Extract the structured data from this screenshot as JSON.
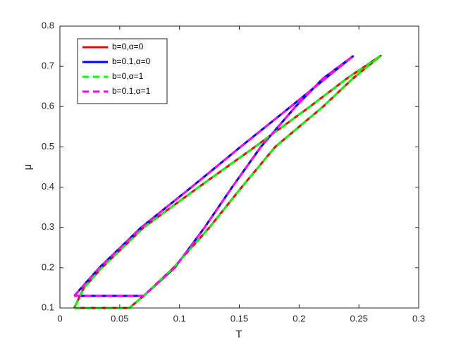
{
  "chart_data": {
    "type": "line",
    "xlabel": "T",
    "ylabel": "μ",
    "xlim": [
      0,
      0.3
    ],
    "xticks": [
      0,
      0.05,
      0.1,
      0.15,
      0.2,
      0.25,
      0.3
    ],
    "ylim": [
      0.1,
      0.8
    ],
    "yticks": [
      0.1,
      0.2,
      0.3,
      0.4,
      0.5,
      0.6,
      0.7,
      0.8
    ],
    "legend": "upper-left",
    "series": [
      {
        "name": "b=0,α=0",
        "color": "#ff0000",
        "style": "solid",
        "x": [
          0.012,
          0.058,
          0.07,
          0.095,
          0.125,
          0.152,
          0.18,
          0.22,
          0.245,
          0.268,
          0.24,
          0.209,
          0.163,
          0.116,
          0.07,
          0.035,
          0.02,
          0.012
        ],
        "values": [
          0.1,
          0.1,
          0.13,
          0.2,
          0.3,
          0.4,
          0.5,
          0.6,
          0.67,
          0.726,
          0.67,
          0.6,
          0.5,
          0.4,
          0.3,
          0.2,
          0.15,
          0.1
        ]
      },
      {
        "name": "b=0.1,α=0",
        "color": "#0000ff",
        "style": "solid",
        "x": [
          0.012,
          0.07,
          0.096,
          0.121,
          0.144,
          0.168,
          0.197,
          0.22,
          0.245,
          0.222,
          0.193,
          0.151,
          0.11,
          0.068,
          0.033,
          0.012
        ],
        "values": [
          0.13,
          0.13,
          0.2,
          0.3,
          0.4,
          0.5,
          0.6,
          0.67,
          0.725,
          0.67,
          0.6,
          0.5,
          0.4,
          0.3,
          0.2,
          0.13
        ]
      },
      {
        "name": "b=0,α=1",
        "color": "#00ff00",
        "style": "dashed",
        "x": [
          0.012,
          0.058,
          0.07,
          0.095,
          0.125,
          0.152,
          0.18,
          0.22,
          0.245,
          0.268,
          0.24,
          0.209,
          0.163,
          0.116,
          0.07,
          0.035,
          0.02,
          0.012
        ],
        "values": [
          0.1,
          0.1,
          0.13,
          0.2,
          0.3,
          0.4,
          0.5,
          0.6,
          0.67,
          0.726,
          0.67,
          0.6,
          0.5,
          0.4,
          0.3,
          0.2,
          0.15,
          0.1
        ]
      },
      {
        "name": "b=0.1,α=1",
        "color": "#ff00ff",
        "style": "dashed",
        "x": [
          0.012,
          0.07,
          0.096,
          0.121,
          0.144,
          0.168,
          0.197,
          0.22,
          0.245,
          0.222,
          0.193,
          0.151,
          0.11,
          0.068,
          0.033,
          0.012
        ],
        "values": [
          0.13,
          0.13,
          0.2,
          0.3,
          0.4,
          0.5,
          0.6,
          0.67,
          0.725,
          0.67,
          0.6,
          0.5,
          0.4,
          0.3,
          0.2,
          0.13
        ]
      }
    ]
  }
}
